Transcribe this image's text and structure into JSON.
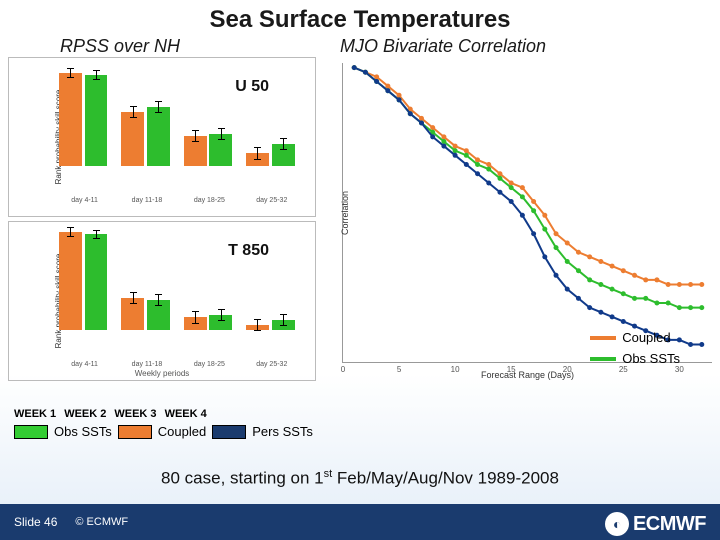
{
  "title": "Sea Surface Temperatures",
  "sub_left": "RPSS over NH",
  "sub_right": "MJO Bivariate Correlation",
  "panels": {
    "u50": {
      "label": "U 50",
      "ylabel": "Rank probability skill score",
      "ylim": [
        -0.1,
        0.4
      ],
      "groups": [
        {
          "label": "day 4-11",
          "orange": 0.38,
          "green": 0.37,
          "err": 0.02
        },
        {
          "label": "day 11-18",
          "orange": 0.22,
          "green": 0.24,
          "err": 0.025
        },
        {
          "label": "day 18-25",
          "orange": 0.12,
          "green": 0.13,
          "err": 0.025
        },
        {
          "label": "day 25-32",
          "orange": 0.05,
          "green": 0.09,
          "err": 0.025
        }
      ]
    },
    "t850": {
      "label": "T 850",
      "ylabel": "Rank probability skill score",
      "xlabel": "Weekly periods",
      "ylim": [
        -0.1,
        0.4
      ],
      "groups": [
        {
          "label": "day 4-11",
          "orange": 0.4,
          "green": 0.39,
          "err": 0.02
        },
        {
          "label": "day 11-18",
          "orange": 0.13,
          "green": 0.12,
          "err": 0.025
        },
        {
          "label": "day 18-25",
          "orange": 0.05,
          "green": 0.06,
          "err": 0.025
        },
        {
          "label": "day 25-32",
          "orange": 0.02,
          "green": 0.04,
          "err": 0.025
        }
      ]
    }
  },
  "colors": {
    "orange": "#ed7d31",
    "green": "#2dbd2d",
    "green_box": "#33cc33",
    "orange_box": "#ed7d31",
    "blue_box": "#1a3b6e",
    "blue_line": "#103a8a"
  },
  "line_chart": {
    "ylabel": "Correlation",
    "xlabel": "Forecast Range (Days)",
    "xlim": [
      0,
      33
    ],
    "ylim": [
      0.35,
      1.0
    ],
    "xticks": [
      0,
      5,
      10,
      15,
      20,
      25,
      30
    ],
    "series": {
      "coupled": {
        "color": "#ed7d31",
        "points": [
          [
            1,
            0.99
          ],
          [
            2,
            0.98
          ],
          [
            3,
            0.97
          ],
          [
            4,
            0.95
          ],
          [
            5,
            0.93
          ],
          [
            6,
            0.9
          ],
          [
            7,
            0.88
          ],
          [
            8,
            0.86
          ],
          [
            9,
            0.84
          ],
          [
            10,
            0.82
          ],
          [
            11,
            0.81
          ],
          [
            12,
            0.79
          ],
          [
            13,
            0.78
          ],
          [
            14,
            0.76
          ],
          [
            15,
            0.74
          ],
          [
            16,
            0.73
          ],
          [
            17,
            0.7
          ],
          [
            18,
            0.67
          ],
          [
            19,
            0.63
          ],
          [
            20,
            0.61
          ],
          [
            21,
            0.59
          ],
          [
            22,
            0.58
          ],
          [
            23,
            0.57
          ],
          [
            24,
            0.56
          ],
          [
            25,
            0.55
          ],
          [
            26,
            0.54
          ],
          [
            27,
            0.53
          ],
          [
            28,
            0.53
          ],
          [
            29,
            0.52
          ],
          [
            30,
            0.52
          ],
          [
            31,
            0.52
          ],
          [
            32,
            0.52
          ]
        ]
      },
      "obs": {
        "color": "#2dbd2d",
        "points": [
          [
            1,
            0.99
          ],
          [
            2,
            0.98
          ],
          [
            3,
            0.96
          ],
          [
            4,
            0.94
          ],
          [
            5,
            0.92
          ],
          [
            6,
            0.89
          ],
          [
            7,
            0.87
          ],
          [
            8,
            0.85
          ],
          [
            9,
            0.83
          ],
          [
            10,
            0.81
          ],
          [
            11,
            0.8
          ],
          [
            12,
            0.78
          ],
          [
            13,
            0.77
          ],
          [
            14,
            0.75
          ],
          [
            15,
            0.73
          ],
          [
            16,
            0.71
          ],
          [
            17,
            0.68
          ],
          [
            18,
            0.64
          ],
          [
            19,
            0.6
          ],
          [
            20,
            0.57
          ],
          [
            21,
            0.55
          ],
          [
            22,
            0.53
          ],
          [
            23,
            0.52
          ],
          [
            24,
            0.51
          ],
          [
            25,
            0.5
          ],
          [
            26,
            0.49
          ],
          [
            27,
            0.49
          ],
          [
            28,
            0.48
          ],
          [
            29,
            0.48
          ],
          [
            30,
            0.47
          ],
          [
            31,
            0.47
          ],
          [
            32,
            0.47
          ]
        ]
      },
      "pers": {
        "color": "#103a8a",
        "points": [
          [
            1,
            0.99
          ],
          [
            2,
            0.98
          ],
          [
            3,
            0.96
          ],
          [
            4,
            0.94
          ],
          [
            5,
            0.92
          ],
          [
            6,
            0.89
          ],
          [
            7,
            0.87
          ],
          [
            8,
            0.84
          ],
          [
            9,
            0.82
          ],
          [
            10,
            0.8
          ],
          [
            11,
            0.78
          ],
          [
            12,
            0.76
          ],
          [
            13,
            0.74
          ],
          [
            14,
            0.72
          ],
          [
            15,
            0.7
          ],
          [
            16,
            0.67
          ],
          [
            17,
            0.63
          ],
          [
            18,
            0.58
          ],
          [
            19,
            0.54
          ],
          [
            20,
            0.51
          ],
          [
            21,
            0.49
          ],
          [
            22,
            0.47
          ],
          [
            23,
            0.46
          ],
          [
            24,
            0.45
          ],
          [
            25,
            0.44
          ],
          [
            26,
            0.43
          ],
          [
            27,
            0.42
          ],
          [
            28,
            0.41
          ],
          [
            29,
            0.4
          ],
          [
            30,
            0.4
          ],
          [
            31,
            0.39
          ],
          [
            32,
            0.39
          ]
        ]
      }
    }
  },
  "legend": {
    "coupled": "Coupled",
    "obs": "Obs SSTs",
    "pers": "Pers SSTs"
  },
  "weeks": [
    "WEEK 1",
    "WEEK 2",
    "WEEK 3",
    "WEEK 4"
  ],
  "box_legend": {
    "obs": "Obs SSTs",
    "coupled": "Coupled"
  },
  "caption_a": "80 case, starting on 1",
  "caption_b": " Feb/May/Aug/Nov 1989-2008",
  "caption_sup": "st",
  "footer": {
    "slide": "Slide 46",
    "org": "© ECMWF",
    "logo": "ECMWF"
  }
}
